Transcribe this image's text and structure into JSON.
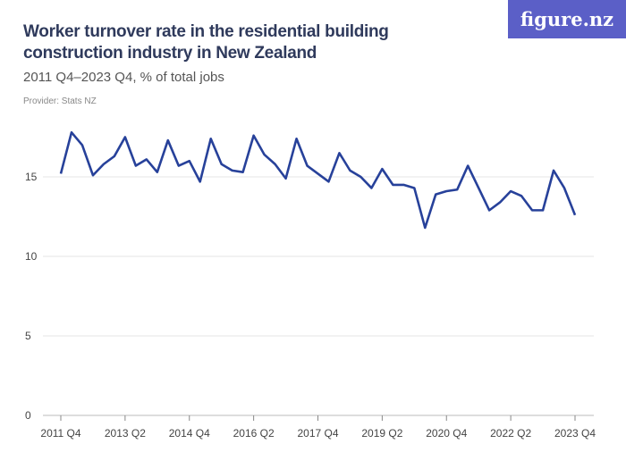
{
  "header": {
    "title": "Worker turnover rate in the residential building construction industry in New Zealand",
    "subtitle": "2011 Q4–2023 Q4, % of total jobs",
    "provider": "Provider: Stats NZ",
    "logo": "figure.nz"
  },
  "colors": {
    "line": "#27419a",
    "grid": "#e5e5e5",
    "logo_bg": "#5b5fc7"
  },
  "chart_data": {
    "type": "line",
    "title": "Worker turnover rate in the residential building construction industry in New Zealand",
    "subtitle": "2011 Q4–2023 Q4, % of total jobs",
    "xlabel": "",
    "ylabel": "",
    "ylim": [
      0,
      18
    ],
    "yticks": [
      0,
      5,
      10,
      15
    ],
    "xtick_labels": [
      "2011 Q4",
      "2013 Q2",
      "2014 Q4",
      "2016 Q2",
      "2017 Q4",
      "2019 Q2",
      "2020 Q4",
      "2022 Q2",
      "2023 Q4"
    ],
    "grid": true,
    "x_start": "2011 Q4",
    "x_end": "2023 Q4",
    "x_frequency": "quarterly",
    "values": [
      15.2,
      17.8,
      17.0,
      15.1,
      15.8,
      16.3,
      17.5,
      15.7,
      16.1,
      15.3,
      17.3,
      15.7,
      16.0,
      14.7,
      17.4,
      15.8,
      15.4,
      15.3,
      17.6,
      16.4,
      15.8,
      14.9,
      17.4,
      15.7,
      15.2,
      14.7,
      16.5,
      15.4,
      15.0,
      14.3,
      15.5,
      14.5,
      14.5,
      14.3,
      11.8,
      13.9,
      14.1,
      14.2,
      15.7,
      14.3,
      12.9,
      13.4,
      14.1,
      13.8,
      12.9,
      12.9,
      15.4,
      14.3,
      12.6
    ]
  }
}
